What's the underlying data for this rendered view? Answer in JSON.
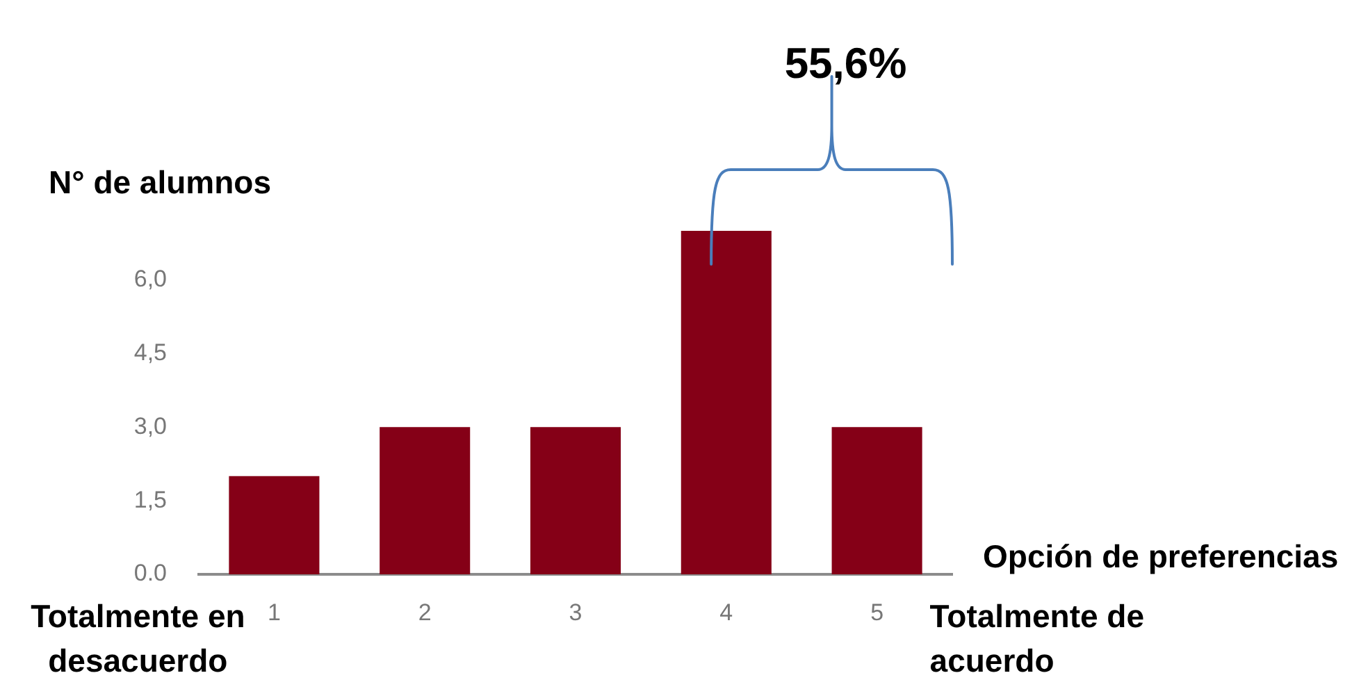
{
  "chart_data": {
    "type": "bar",
    "xlabel": "Opción de preferencias",
    "ylabel": "N° de alumnos",
    "annotations": [
      "55,6%",
      "Totalmente en desacuerdo",
      "Totalmente de acuerdo"
    ],
    "categories": [
      "1",
      "2",
      "3",
      "4",
      "5"
    ],
    "values": [
      2,
      3,
      3,
      7,
      3
    ],
    "color": "#850017",
    "ylim": [
      0,
      7
    ],
    "yticks": [
      {
        "value": 0,
        "label": "0.0"
      },
      {
        "value": 1.5,
        "label": "1,5"
      },
      {
        "value": 3,
        "label": "3,0"
      },
      {
        "value": 4.5,
        "label": "4,5"
      },
      {
        "value": 6,
        "label": "6,0"
      }
    ]
  }
}
